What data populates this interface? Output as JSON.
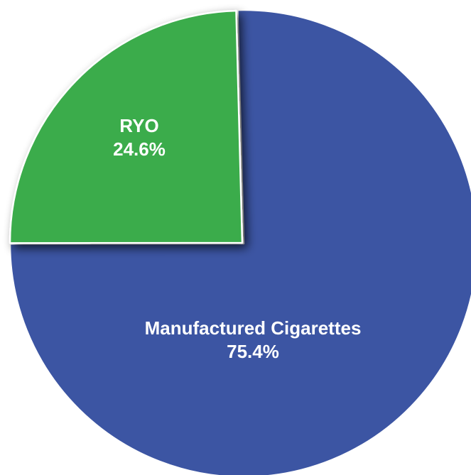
{
  "chart_data": {
    "type": "pie",
    "title": "",
    "slices": [
      {
        "label": "Manufactured Cigarettes",
        "value": 75.4,
        "value_label": "75.4%",
        "color": "#3c55a3"
      },
      {
        "label": "RYO",
        "value": 24.6,
        "value_label": "24.6%",
        "color": "#3bac4b"
      }
    ],
    "exploded_slice": "RYO",
    "legend": "none"
  }
}
